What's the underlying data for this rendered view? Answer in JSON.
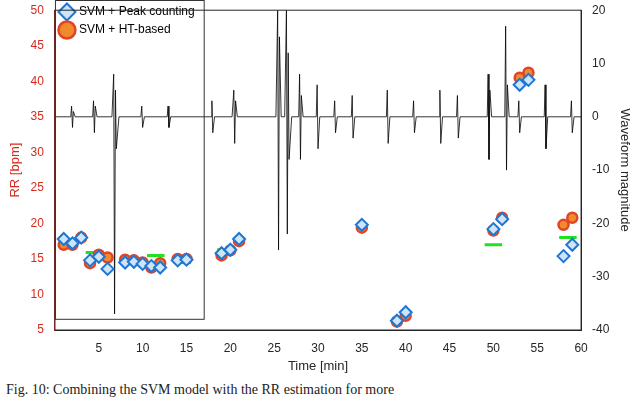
{
  "chart_data": {
    "type": "scatter",
    "xlabel": "Time [min]",
    "ylabel": "RR [bpm]",
    "y2label": "Waveform magnitude",
    "xlim": [
      0,
      60
    ],
    "xticks": [
      5,
      10,
      15,
      20,
      25,
      30,
      35,
      40,
      45,
      50,
      55,
      60
    ],
    "ylim": [
      5,
      50
    ],
    "yticks": [
      5,
      10,
      15,
      20,
      25,
      30,
      35,
      40,
      45,
      50
    ],
    "y2lim": [
      -40,
      20
    ],
    "y2ticks": [
      -40,
      -30,
      -20,
      -10,
      0,
      10,
      20
    ],
    "grid": false,
    "legend": "upper left",
    "caption": "Fig. 10: Combining the SVM model with the RR estimation for more",
    "series": [
      {
        "type": "line",
        "axis": "y2",
        "color": "#000000",
        "line_style": "solid",
        "marker": "none",
        "x": [
          0,
          1.8,
          1.9,
          2.0,
          2.1,
          2.3,
          4.3,
          4.4,
          4.5,
          4.6,
          4.8,
          6.5,
          6.7,
          6.8,
          6.9,
          7.0,
          7.3,
          9.8,
          9.9,
          10.0,
          10.2,
          12.8,
          12.9,
          13.0,
          13.2,
          17.8,
          17.9,
          18.0,
          18.2,
          20.2,
          20.4,
          20.5,
          20.6,
          20.8,
          25.2,
          25.4,
          25.5,
          25.6,
          25.8,
          26.2,
          26.4,
          26.5,
          26.6,
          26.7,
          27.0,
          27.8,
          27.9,
          28.0,
          28.1,
          28.3,
          29.8,
          29.9,
          30.0,
          30.2,
          31.8,
          31.9,
          32.0,
          32.2,
          33.8,
          33.9,
          34.0,
          34.2,
          37.8,
          37.9,
          38.0,
          38.2,
          40.8,
          40.9,
          41.0,
          41.2,
          43.8,
          43.9,
          44.0,
          44.2,
          45.8,
          45.9,
          46.0,
          46.2,
          49.3,
          49.4,
          49.5,
          49.6,
          49.8,
          51.3,
          51.4,
          51.5,
          51.6,
          51.8,
          52.8,
          52.9,
          53.0,
          53.2,
          55.8,
          55.9,
          56.0,
          56.2,
          58.8,
          58.9,
          59.0,
          59.2,
          60
        ],
        "values": [
          0,
          0,
          2,
          -2,
          1,
          0,
          0,
          3,
          -3,
          2,
          0,
          0,
          8,
          -37,
          5,
          -6,
          0,
          0,
          2,
          -2,
          0,
          0,
          2,
          -2,
          0,
          0,
          3,
          -3,
          0,
          0,
          5,
          -5,
          3,
          0,
          0,
          20,
          -25,
          15,
          0,
          0,
          20,
          -22,
          12,
          -8,
          0,
          0,
          8,
          -8,
          4,
          0,
          0,
          6,
          -6,
          0,
          0,
          3,
          -3,
          0,
          0,
          4,
          -4,
          0,
          0,
          5,
          -5,
          0,
          0,
          3,
          -3,
          0,
          0,
          5,
          -5,
          0,
          0,
          4,
          -4,
          0,
          0,
          8,
          -8,
          5,
          0,
          0,
          17,
          -10,
          6,
          0,
          0,
          3,
          -3,
          0,
          0,
          6,
          -6,
          0,
          0,
          3,
          -3,
          0,
          0
        ]
      },
      {
        "type": "line",
        "axis": "y",
        "color": "#22e022",
        "line_style": "solid",
        "marker": "none",
        "x_start": [
          0.5,
          3.5,
          7.5,
          10.5,
          13.8,
          18.5,
          49,
          57.5
        ],
        "x_end": [
          2.3,
          5.5,
          10.3,
          12.5,
          15.5,
          20.5,
          51,
          59.5
        ],
        "values": [
          17.6,
          15.9,
          15.0,
          15.5,
          14.5,
          16.3,
          17.0,
          18.0
        ]
      },
      {
        "name": "SVM + Peak counting",
        "type": "scatter",
        "axis": "y",
        "color": "#1f77d4",
        "marker": "diamond",
        "line_style": "none",
        "x": [
          1,
          2,
          3,
          4,
          5,
          6,
          8,
          9,
          10,
          11,
          12,
          14,
          15,
          19,
          20,
          21,
          35,
          39,
          40,
          50,
          51,
          53,
          54,
          58,
          59
        ],
        "values": [
          17.8,
          17.2,
          18.0,
          14.8,
          15.3,
          13.6,
          14.5,
          14.6,
          14.3,
          14.0,
          13.8,
          14.8,
          14.9,
          15.8,
          16.3,
          17.8,
          19.8,
          6.3,
          7.5,
          19.2,
          20.6,
          39.5,
          40.2,
          15.4,
          17.0
        ]
      },
      {
        "name": "SVM + HT-based",
        "type": "scatter",
        "axis": "y",
        "color": "#e0452a",
        "marker": "circle",
        "line_style": "none",
        "x": [
          1,
          2,
          3,
          4,
          5,
          6,
          8,
          9,
          10,
          11,
          12,
          14,
          15,
          19,
          20,
          21,
          35,
          39,
          40,
          50,
          51,
          53,
          54,
          58,
          59
        ],
        "values": [
          17.0,
          17.0,
          18.0,
          14.4,
          15.6,
          15.2,
          14.9,
          14.8,
          14.5,
          13.8,
          14.4,
          15.0,
          15.0,
          15.5,
          16.2,
          17.5,
          19.4,
          6.2,
          7.0,
          19.0,
          20.8,
          40.5,
          41.2,
          19.8,
          20.8
        ]
      }
    ]
  }
}
